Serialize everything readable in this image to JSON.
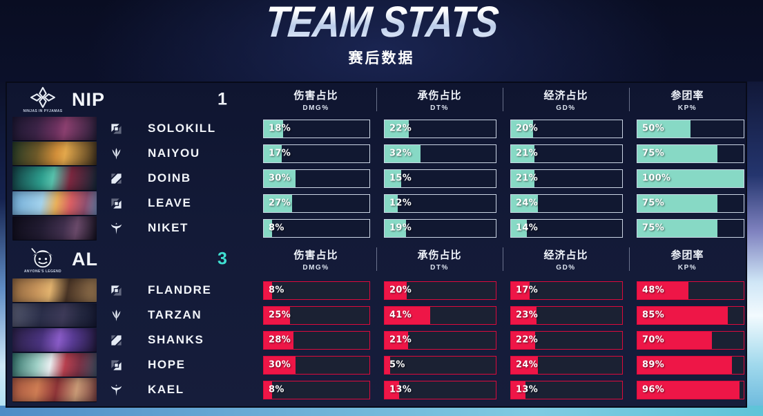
{
  "title": "TEAM STATS",
  "subtitle": "赛后数据",
  "columns": [
    {
      "zh": "伤害占比",
      "en": "DMG%"
    },
    {
      "zh": "承伤占比",
      "en": "DT%"
    },
    {
      "zh": "经济占比",
      "en": "GD%"
    },
    {
      "zh": "参团率",
      "en": "KP%"
    }
  ],
  "teams": [
    {
      "name": "NIP",
      "logo_text": "NINJAS IN PYJAMAS",
      "score": "1",
      "colors": {
        "fill": "#87d9c5",
        "border": "#ccd6e5",
        "track": "#111831",
        "score": "#eef1f7"
      },
      "players": [
        {
          "name": "SOLOKILL",
          "role": "top",
          "dmg": 18,
          "dt": 22,
          "gd": 20,
          "kp": 50,
          "art": "linear-gradient(100deg,#1c1730 0%,#3c2447 30%,#6d3260 52%,#8c4070 62%,#241d36 100%)"
        },
        {
          "name": "NAIYOU",
          "role": "jungle",
          "dmg": 17,
          "dt": 32,
          "gd": 21,
          "kp": 75,
          "art": "linear-gradient(100deg,#233824 0%,#6e5a2a 30%,#d28f3a 52%,#e3a84c 62%,#3a2d1a 100%)"
        },
        {
          "name": "DOINB",
          "role": "mid",
          "dmg": 30,
          "dt": 15,
          "gd": 21,
          "kp": 100,
          "art": "linear-gradient(100deg,#123c40 0%,#2e9e8e 35%,#57c2ac 48%,#7c2840 68%,#132736 100%)"
        },
        {
          "name": "LEAVE",
          "role": "bot",
          "dmg": 27,
          "dt": 12,
          "gd": 24,
          "kp": 75,
          "art": "linear-gradient(100deg,#6fa9d4 0%,#a3d2ec 35%,#e8b05a 52%,#d95f63 68%,#8f4f6f 85%,#6f87b0 100%)"
        },
        {
          "name": "NIKET",
          "role": "support",
          "dmg": 8,
          "dt": 19,
          "gd": 14,
          "kp": 75,
          "art": "linear-gradient(100deg,#0f0d1a 0%,#221c32 35%,#41304e 60%,#6a4a6a 75%,#120f1c 100%)"
        }
      ]
    },
    {
      "name": "AL",
      "logo_text": "Anyone's Legend",
      "score": "3",
      "colors": {
        "fill": "#ee1647",
        "border": "#de0a3c",
        "track": "#1b2133",
        "score": "#3fe0d2"
      },
      "players": [
        {
          "name": "FLANDRE",
          "role": "top",
          "dmg": 8,
          "dt": 20,
          "gd": 17,
          "kp": 48,
          "art": "linear-gradient(100deg,#8a623c 0%,#c8955c 30%,#e2b36f 45%,#4a3526 65%,#9c7a52 100%)"
        },
        {
          "name": "TARZAN",
          "role": "jungle",
          "dmg": 25,
          "dt": 41,
          "gd": 23,
          "kp": 85,
          "art": "linear-gradient(100deg,#55596e 0%,#2b2f4a 35%,#3d3a58 60%,#23273f 80%,#141830 100%)"
        },
        {
          "name": "SHANKS",
          "role": "mid",
          "dmg": 28,
          "dt": 21,
          "gd": 22,
          "kp": 70,
          "art": "linear-gradient(100deg,#2a2046 0%,#4b3480 35%,#8a5cc8 55%,#5a3c96 70%,#1f1838 100%)"
        },
        {
          "name": "HOPE",
          "role": "bot",
          "dmg": 30,
          "dt": 5,
          "gd": 24,
          "kp": 89,
          "art": "linear-gradient(100deg,#2f6e66 0%,#9fd0c6 30%,#e9eef0 45%,#b8404f 62%,#7c3246 78%,#3c4e60 100%)"
        },
        {
          "name": "KAEL",
          "role": "support",
          "dmg": 8,
          "dt": 13,
          "gd": 13,
          "kp": 96,
          "art": "linear-gradient(100deg,#a4543e 0%,#cf7d54 30%,#8f3538 52%,#c99a76 75%,#713a3a 100%)"
        }
      ]
    }
  ]
}
